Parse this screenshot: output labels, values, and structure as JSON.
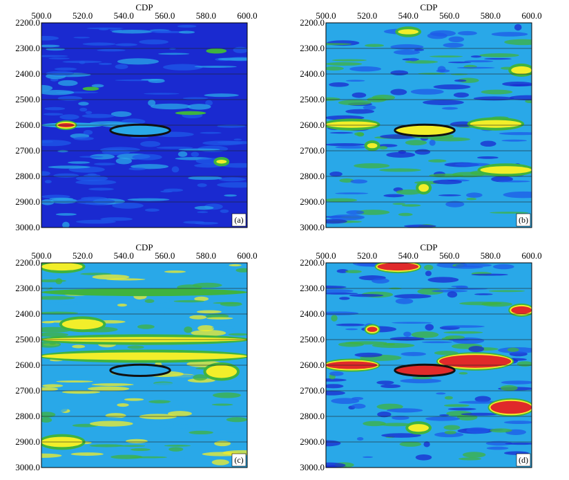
{
  "colors": {
    "dark_blue": "#1a2ad0",
    "mid_blue": "#1e5ae8",
    "light_blue": "#29a8e8",
    "green": "#3fb33f",
    "yellow": "#f2ee2a",
    "red": "#e02a2a",
    "grid_line": "#202020",
    "ellipse": "#111111"
  },
  "chart_data": [
    {
      "type": "heatmap",
      "panel_label": "(a)",
      "xlabel": "CDP",
      "ylabel": "",
      "xlim": [
        500.0,
        600.0
      ],
      "ylim": [
        2200.0,
        3000.0
      ],
      "x_ticks": [
        "500.0",
        "520.0",
        "540.0",
        "560.0",
        "580.0",
        "600.0"
      ],
      "y_ticks": [
        "2200.0",
        "2300.0",
        "2400.0",
        "2500.0",
        "2600.0",
        "2700.0",
        "2800.0",
        "2900.0",
        "3000.0"
      ],
      "background": "dark_blue",
      "ellipse": {
        "cx": 548.0,
        "cy": 2620.0,
        "rx": 14.5,
        "ry": 22.0,
        "fill": "light_blue"
      },
      "features": [
        {
          "x": [
            500,
            530
          ],
          "y": [
            2590,
            2610
          ],
          "color": "light_blue"
        },
        {
          "x": [
            508,
            516
          ],
          "y": [
            2592,
            2608
          ],
          "color": "red"
        },
        {
          "x": [
            520,
            528
          ],
          "y": [
            2450,
            2465
          ],
          "color": "green"
        },
        {
          "x": [
            565,
            580
          ],
          "y": [
            2545,
            2560
          ],
          "color": "green"
        },
        {
          "x": [
            540,
            560
          ],
          "y": [
            2615,
            2630
          ],
          "color": "green"
        },
        {
          "x": [
            585,
            590
          ],
          "y": [
            2735,
            2750
          ],
          "color": "yellow"
        },
        {
          "x": [
            580,
            590
          ],
          "y": [
            2300,
            2320
          ],
          "color": "green"
        }
      ]
    },
    {
      "type": "heatmap",
      "panel_label": "(b)",
      "xlabel": "CDP",
      "ylabel": "",
      "xlim": [
        500.0,
        600.0
      ],
      "ylim": [
        2200.0,
        3000.0
      ],
      "x_ticks": [
        "500.0",
        "520.0",
        "540.0",
        "560.0",
        "580.0",
        "600.0"
      ],
      "y_ticks": [
        "2200.0",
        "2300.0",
        "2400.0",
        "2500.0",
        "2600.0",
        "2700.0",
        "2800.0",
        "2900.0",
        "3000.0"
      ],
      "background": "light_blue",
      "ellipse": {
        "cx": 548.0,
        "cy": 2620.0,
        "rx": 14.5,
        "ry": 22.0,
        "fill": "yellow"
      },
      "features": [
        {
          "x": [
            500,
            525
          ],
          "y": [
            2585,
            2610
          ],
          "color": "yellow"
        },
        {
          "x": [
            535,
            545
          ],
          "y": [
            2225,
            2245
          ],
          "color": "yellow"
        },
        {
          "x": [
            570,
            595
          ],
          "y": [
            2580,
            2610
          ],
          "color": "yellow"
        },
        {
          "x": [
            520,
            525
          ],
          "y": [
            2670,
            2690
          ],
          "color": "yellow"
        },
        {
          "x": [
            575,
            600
          ],
          "y": [
            2760,
            2790
          ],
          "color": "yellow"
        },
        {
          "x": [
            545,
            550
          ],
          "y": [
            2830,
            2860
          ],
          "color": "yellow"
        },
        {
          "x": [
            590,
            600
          ],
          "y": [
            2370,
            2400
          ],
          "color": "yellow"
        }
      ]
    },
    {
      "type": "heatmap",
      "panel_label": "(c)",
      "xlabel": "CDP",
      "ylabel": "",
      "xlim": [
        500.0,
        600.0
      ],
      "ylim": [
        2200.0,
        3000.0
      ],
      "x_ticks": [
        "500.0",
        "520.0",
        "540.0",
        "560.0",
        "580.0",
        "600.0"
      ],
      "y_ticks": [
        "2200.0",
        "2300.0",
        "2400.0",
        "2500.0",
        "2600.0",
        "2700.0",
        "2800.0",
        "2900.0",
        "3000.0"
      ],
      "background": "light_blue",
      "ellipse": {
        "cx": 548.0,
        "cy": 2620.0,
        "rx": 14.5,
        "ry": 22.0,
        "fill": "light_blue"
      },
      "features": [
        {
          "x": [
            500,
            600
          ],
          "y": [
            2490,
            2510
          ],
          "color": "yellow"
        },
        {
          "x": [
            500,
            600
          ],
          "y": [
            2550,
            2580
          ],
          "color": "yellow"
        },
        {
          "x": [
            510,
            530
          ],
          "y": [
            2420,
            2460
          ],
          "color": "yellow"
        },
        {
          "x": [
            580,
            595
          ],
          "y": [
            2600,
            2650
          ],
          "color": "yellow"
        },
        {
          "x": [
            500,
            520
          ],
          "y": [
            2880,
            2920
          ],
          "color": "yellow"
        },
        {
          "x": [
            500,
            520
          ],
          "y": [
            2200,
            2230
          ],
          "color": "yellow"
        },
        {
          "x": [
            500,
            600
          ],
          "y": [
            2300,
            2330
          ],
          "color": "green"
        }
      ]
    },
    {
      "type": "heatmap",
      "panel_label": "(d)",
      "xlabel": "CDP",
      "ylabel": "",
      "xlim": [
        500.0,
        600.0
      ],
      "ylim": [
        2200.0,
        3000.0
      ],
      "x_ticks": [
        "500.0",
        "520.0",
        "540.0",
        "560.0",
        "580.0",
        "600.0"
      ],
      "y_ticks": [
        "2200.0",
        "2300.0",
        "2400.0",
        "2500.0",
        "2600.0",
        "2700.0",
        "2800.0",
        "2900.0",
        "3000.0"
      ],
      "background": "light_blue",
      "ellipse": {
        "cx": 548.0,
        "cy": 2620.0,
        "rx": 14.5,
        "ry": 22.0,
        "fill": "red"
      },
      "features": [
        {
          "x": [
            500,
            525
          ],
          "y": [
            2585,
            2615
          ],
          "color": "red"
        },
        {
          "x": [
            525,
            545
          ],
          "y": [
            2200,
            2230
          ],
          "color": "red"
        },
        {
          "x": [
            555,
            590
          ],
          "y": [
            2560,
            2610
          ],
          "color": "red"
        },
        {
          "x": [
            580,
            600
          ],
          "y": [
            2740,
            2790
          ],
          "color": "red"
        },
        {
          "x": [
            590,
            600
          ],
          "y": [
            2370,
            2400
          ],
          "color": "red"
        },
        {
          "x": [
            520,
            525
          ],
          "y": [
            2450,
            2470
          ],
          "color": "red"
        },
        {
          "x": [
            540,
            550
          ],
          "y": [
            2830,
            2860
          ],
          "color": "yellow"
        }
      ]
    }
  ]
}
